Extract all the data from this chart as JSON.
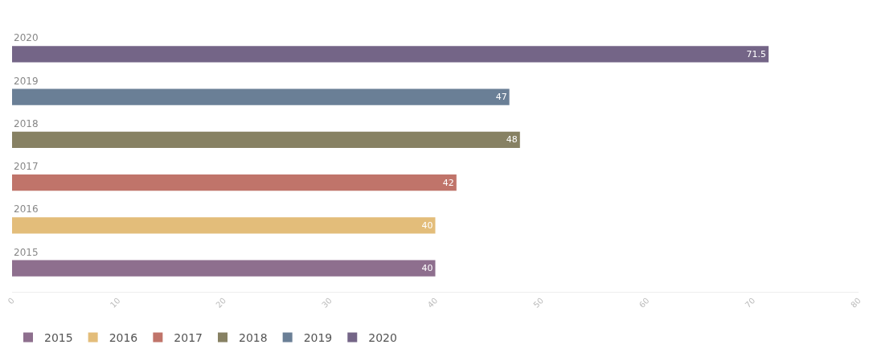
{
  "chart_data": {
    "type": "bar",
    "orientation": "horizontal",
    "categories": [
      "2020",
      "2019",
      "2018",
      "2017",
      "2016",
      "2015"
    ],
    "series": [
      {
        "name": "2015",
        "color": "#8e6f8e",
        "values": [
          null,
          null,
          null,
          null,
          null,
          40
        ]
      },
      {
        "name": "2016",
        "color": "#e3bd7a",
        "values": [
          null,
          null,
          null,
          null,
          40,
          null
        ]
      },
      {
        "name": "2017",
        "color": "#c0746a",
        "values": [
          null,
          null,
          null,
          42,
          null,
          null
        ]
      },
      {
        "name": "2018",
        "color": "#878163",
        "values": [
          null,
          null,
          48,
          null,
          null,
          null
        ]
      },
      {
        "name": "2019",
        "color": "#6a7f96",
        "values": [
          null,
          47,
          null,
          null,
          null,
          null
        ]
      },
      {
        "name": "2020",
        "color": "#746587",
        "values": [
          71.5,
          null,
          null,
          null,
          null,
          null
        ]
      }
    ],
    "xlim": [
      0,
      80
    ],
    "xticks": [
      0,
      10,
      20,
      30,
      40,
      50,
      60,
      70,
      80
    ],
    "data_labels": true,
    "legend": "bottom left"
  }
}
